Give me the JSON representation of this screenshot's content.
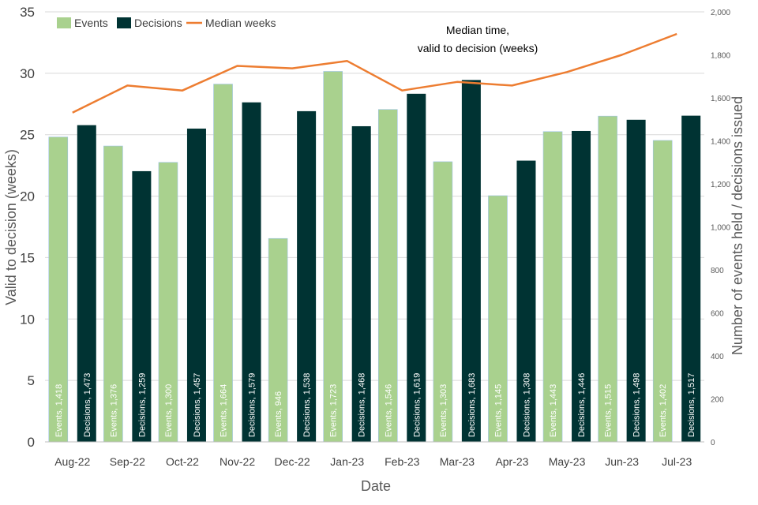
{
  "chart_data": {
    "type": "bar",
    "categories": [
      "Aug-22",
      "Sep-22",
      "Oct-22",
      "Nov-22",
      "Dec-22",
      "Jan-23",
      "Feb-23",
      "Mar-23",
      "Apr-23",
      "May-23",
      "Jun-23",
      "Jul-23"
    ],
    "series": [
      {
        "name": "Events",
        "axis": "right",
        "color": "#a9d18e",
        "values": [
          1418,
          1376,
          1300,
          1664,
          946,
          1723,
          1546,
          1303,
          1145,
          1443,
          1515,
          1402
        ],
        "labels": [
          "Events, 1,418",
          "Events, 1,376",
          "Events, 1,300",
          "Events, 1,664",
          "Events, 946",
          "Events, 1,723",
          "Events, 1,546",
          "Events, 1,303",
          "Events, 1,145",
          "Events, 1,443",
          "Events, 1,515",
          "Events, 1,402"
        ]
      },
      {
        "name": "Decisions",
        "axis": "right",
        "color": "#003333",
        "values": [
          1473,
          1259,
          1457,
          1579,
          1538,
          1468,
          1619,
          1683,
          1308,
          1446,
          1498,
          1517
        ],
        "labels": [
          "Decisions, 1,473",
          "Decisions, 1,259",
          "Decisions, 1,457",
          "Decisions, 1,579",
          "Decisions, 1,538",
          "Decisions, 1,468",
          "Decisions, 1,619",
          "Decisions, 1,683",
          "Decisions, 1,308",
          "Decisions, 1,446",
          "Decisions, 1,498",
          "Decisions, 1,517"
        ]
      },
      {
        "name": "Median weeks",
        "type": "line",
        "axis": "left",
        "color": "#ed7d31",
        "values": [
          26.8,
          29.0,
          28.6,
          30.6,
          30.4,
          31.0,
          28.6,
          29.3,
          29.0,
          30.1,
          31.5,
          33.2
        ]
      }
    ],
    "title": "",
    "annotation": [
      "Median time,",
      "valid to decision (weeks)"
    ],
    "xlabel": "Date",
    "ylabel": "Valid to decision (weeks)",
    "y2label": "Number of events held / decisions issued",
    "ylim": [
      0,
      35
    ],
    "y2lim": [
      0,
      2000
    ],
    "yticks": [
      "0",
      "5",
      "10",
      "15",
      "20",
      "25",
      "30",
      "35"
    ],
    "y2ticks": [
      "0",
      "200",
      "400",
      "600",
      "800",
      "1,000",
      "1,200",
      "1,400",
      "1,600",
      "1,800",
      "2,000"
    ],
    "grid": true,
    "legend": "top-left"
  }
}
